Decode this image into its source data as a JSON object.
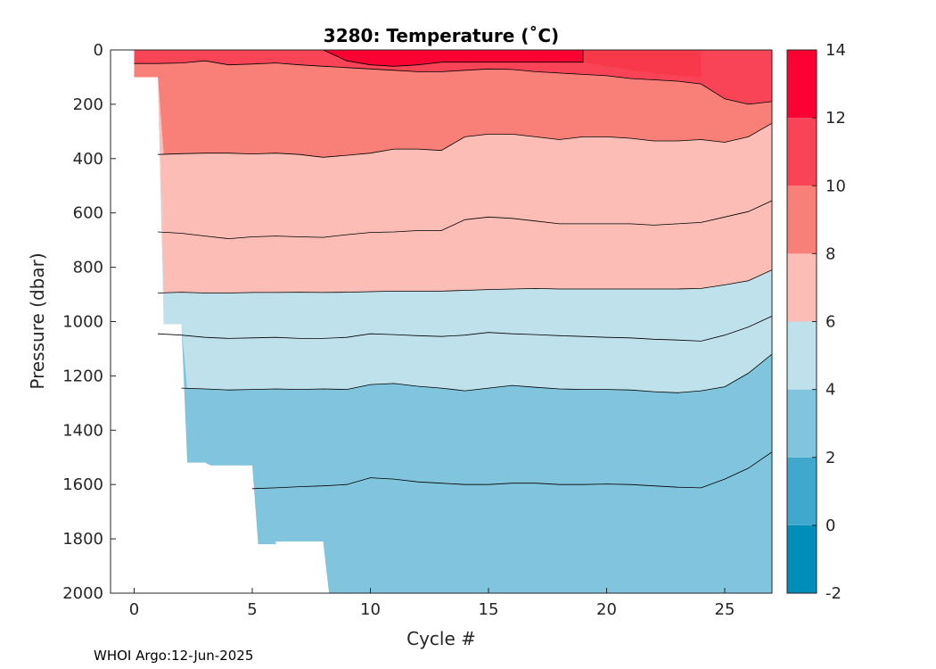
{
  "chart_data": {
    "type": "contour",
    "title": "3280:  Temperature (˚C)",
    "xlabel": "Cycle #",
    "ylabel": "Pressure (dbar)",
    "xlim": [
      -1,
      27
    ],
    "ylim": [
      2000,
      0
    ],
    "xticks": [
      0,
      5,
      10,
      15,
      20,
      25
    ],
    "yticks": [
      0,
      200,
      400,
      600,
      800,
      1000,
      1200,
      1400,
      1600,
      1800,
      2000
    ],
    "colorbar": {
      "ticks": [
        -2,
        0,
        2,
        4,
        6,
        8,
        10,
        12,
        14
      ],
      "levels": [
        -2,
        0,
        2,
        4,
        6,
        8,
        10,
        12,
        14
      ],
      "colors": [
        "#008eb9",
        "#40a8cc",
        "#80c4dd",
        "#bfe1ec",
        "#fbbdb5",
        "#f98079",
        "#f84456",
        "#fa0231"
      ]
    },
    "max_depth": {
      "x": [
        0,
        1,
        1,
        2,
        2,
        3,
        3,
        5,
        5,
        6,
        6,
        8,
        8,
        27
      ],
      "p": [
        100,
        100,
        1010,
        1010,
        1520,
        1520,
        1530,
        1530,
        1820,
        1820,
        1810,
        1810,
        2000,
        2000
      ]
    },
    "contours": [
      {
        "level": 12,
        "x": [
          8,
          9,
          10,
          11,
          12,
          13,
          14,
          15,
          16,
          17,
          18,
          19,
          19
        ],
        "p": [
          0,
          40,
          55,
          60,
          55,
          45,
          45,
          45,
          45,
          45,
          45,
          45,
          0
        ]
      },
      {
        "level": 10,
        "x": [
          0,
          1,
          2,
          3,
          4,
          5,
          6,
          7,
          8,
          9,
          10,
          11,
          12,
          13,
          14,
          15,
          16,
          17,
          18,
          19,
          20,
          21,
          22,
          23,
          24,
          25,
          26,
          27,
          27
        ],
        "p": [
          50,
          50,
          48,
          40,
          55,
          52,
          48,
          55,
          60,
          65,
          70,
          75,
          80,
          80,
          75,
          70,
          72,
          80,
          85,
          90,
          95,
          105,
          110,
          115,
          125,
          180,
          200,
          190,
          0
        ]
      },
      {
        "level": 8,
        "x": [
          1,
          2,
          3,
          4,
          5,
          6,
          7,
          8,
          9,
          10,
          11,
          12,
          13,
          14,
          15,
          16,
          17,
          18,
          19,
          20,
          21,
          22,
          23,
          24,
          25,
          26,
          27
        ],
        "p": [
          385,
          382,
          380,
          380,
          383,
          380,
          385,
          395,
          388,
          380,
          365,
          365,
          370,
          320,
          310,
          310,
          320,
          330,
          320,
          320,
          325,
          335,
          335,
          330,
          340,
          320,
          270
        ]
      },
      {
        "level": 6,
        "x": [
          1,
          2,
          3,
          4,
          5,
          6,
          7,
          8,
          9,
          10,
          11,
          12,
          13,
          14,
          15,
          16,
          17,
          18,
          19,
          20,
          21,
          22,
          23,
          24,
          25,
          26,
          27
        ],
        "p": [
          670,
          675,
          685,
          695,
          688,
          685,
          688,
          690,
          680,
          672,
          670,
          665,
          665,
          625,
          615,
          620,
          630,
          640,
          640,
          640,
          640,
          645,
          640,
          635,
          615,
          595,
          555
        ]
      },
      {
        "level": 4,
        "x": [
          1,
          2,
          3,
          4,
          5,
          6,
          7,
          8,
          9,
          10,
          11,
          12,
          13,
          14,
          15,
          16,
          17,
          18,
          19,
          20,
          21,
          22,
          23,
          24,
          25,
          26,
          27
        ],
        "p": [
          895,
          892,
          895,
          895,
          893,
          893,
          892,
          893,
          892,
          890,
          888,
          888,
          888,
          885,
          882,
          880,
          878,
          880,
          880,
          880,
          880,
          880,
          880,
          878,
          865,
          850,
          810
        ]
      },
      {
        "level": 2,
        "x": [
          2,
          3,
          4,
          5,
          6,
          7,
          8,
          9,
          10,
          11,
          12,
          13,
          14,
          15,
          16,
          17,
          18,
          19,
          20,
          21,
          22,
          23,
          24,
          25,
          26,
          27
        ],
        "p": [
          1245,
          1248,
          1252,
          1250,
          1248,
          1250,
          1248,
          1250,
          1232,
          1228,
          1238,
          1245,
          1255,
          1245,
          1235,
          1242,
          1248,
          1250,
          1250,
          1252,
          1258,
          1262,
          1255,
          1240,
          1190,
          1120
        ]
      },
      {
        "level": 4,
        "x": [
          1,
          2,
          3,
          4,
          5,
          6,
          7,
          8,
          9,
          10,
          11,
          12,
          13,
          14,
          15,
          16,
          17,
          18,
          19,
          20,
          21,
          22,
          23,
          24,
          25,
          26,
          27
        ],
        "p": [
          1045,
          1050,
          1058,
          1062,
          1060,
          1058,
          1062,
          1062,
          1058,
          1045,
          1048,
          1052,
          1055,
          1050,
          1040,
          1045,
          1048,
          1052,
          1055,
          1058,
          1060,
          1065,
          1068,
          1072,
          1050,
          1020,
          980
        ]
      },
      {
        "level": 2,
        "x": [
          5,
          6,
          7,
          8,
          9,
          10,
          11,
          12,
          13,
          14,
          15,
          16,
          17,
          18,
          19,
          20,
          21,
          22,
          23,
          24,
          25,
          26,
          27
        ],
        "p": [
          1615,
          1612,
          1608,
          1605,
          1600,
          1575,
          1580,
          1590,
          1595,
          1600,
          1600,
          1595,
          1595,
          1600,
          1600,
          1598,
          1600,
          1605,
          1610,
          1612,
          1580,
          1540,
          1480
        ]
      }
    ],
    "footer": "WHOI Argo:12-Jun-2025"
  }
}
